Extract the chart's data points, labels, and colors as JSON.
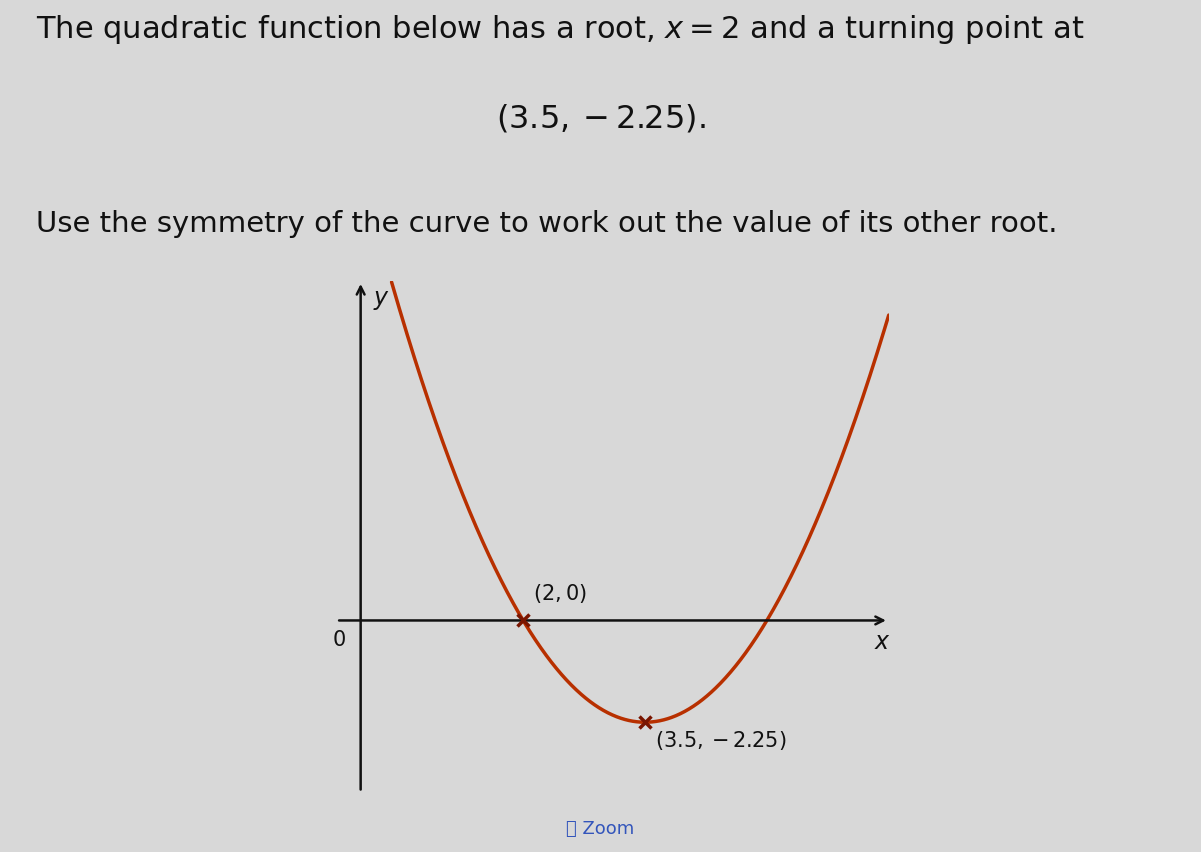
{
  "background_color": "#d8d8d8",
  "title_line1": "The quadratic function below has a root, $x = 2$ and a turning point at",
  "title_line2": "$(3.5, -2.25)$.",
  "subtitle": "Use the symmetry of the curve to work out the value of its other root.",
  "curve_color": "#b83000",
  "axis_color": "#111111",
  "root_x": 2.0,
  "root_y": 0.0,
  "turning_x": 3.5,
  "turning_y": -2.25,
  "x_min": -0.3,
  "x_max": 6.5,
  "y_min": -3.8,
  "y_max": 7.5,
  "zoom_label": "Zoom",
  "text_color": "#111111",
  "marker_color": "#7a1500",
  "title_fontsize": 22,
  "subtitle_fontsize": 21,
  "label_fontsize": 15,
  "axis_label_fontsize": 17
}
